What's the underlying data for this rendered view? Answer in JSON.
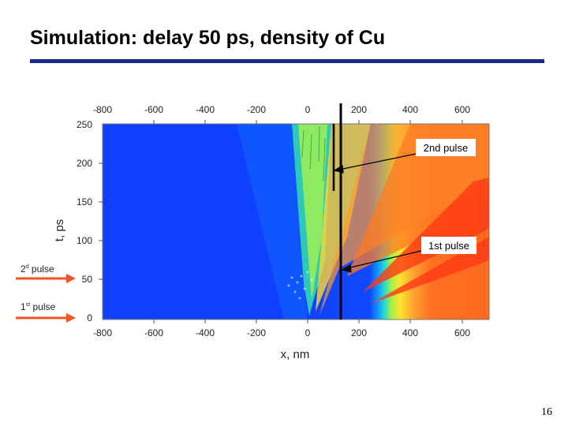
{
  "slide": {
    "title": "Simulation: delay 50 ps, density of Cu",
    "page_number": "16"
  },
  "plot": {
    "x_label": "x, nm",
    "y_label": "t, ps",
    "x_ticks": [
      "-800",
      "-600",
      "-400",
      "-200",
      "0",
      "200",
      "400",
      "600"
    ],
    "y_ticks": [
      "250",
      "200",
      "150",
      "100",
      "50",
      "0"
    ],
    "callouts": {
      "second": "2nd pulse",
      "first": "1st pulse"
    },
    "side_labels": {
      "second_prefix": "2",
      "second_sup": "d",
      "second_suffix": " pulse",
      "first_prefix": "1",
      "first_sup": "st",
      "first_suffix": " pulse"
    },
    "colors": {
      "vacuum_blue": "#1040ff",
      "metal_orange": "#ff6a1e",
      "accent_red": "#ff2a10",
      "arrow_orange": "#ee5522",
      "title_bar": "#1a2a8a"
    }
  }
}
